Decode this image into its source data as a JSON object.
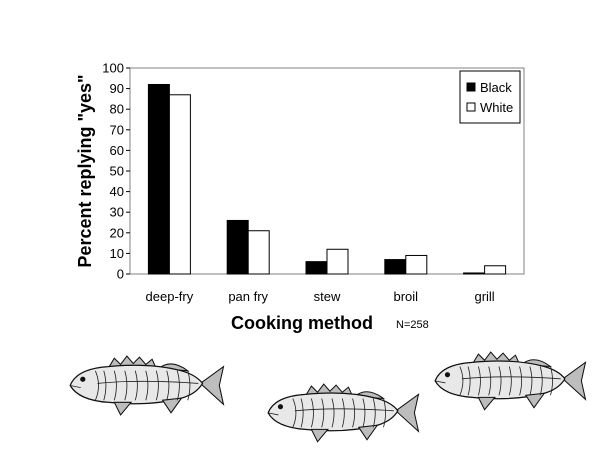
{
  "chart_data": {
    "type": "bar",
    "categories": [
      "deep-fry",
      "pan fry",
      "stew",
      "broil",
      "grill"
    ],
    "series": [
      {
        "name": "Black",
        "values": [
          92,
          26,
          6,
          7,
          0.5
        ],
        "color": "#000000"
      },
      {
        "name": "White",
        "values": [
          87,
          21,
          12,
          9,
          4
        ],
        "color": "#ffffff"
      }
    ],
    "title": "",
    "xlabel": "Cooking method",
    "ylabel": "Percent replying \"yes\"",
    "ylim": [
      0,
      100
    ],
    "yticks": [
      0,
      10,
      20,
      30,
      40,
      50,
      60,
      70,
      80,
      90,
      100
    ],
    "grid": false,
    "legend_position": "top-right",
    "annotation": "N=258"
  },
  "illustrations": [
    {
      "name": "fish-illustration-left"
    },
    {
      "name": "fish-illustration-center"
    },
    {
      "name": "fish-illustration-right"
    }
  ]
}
